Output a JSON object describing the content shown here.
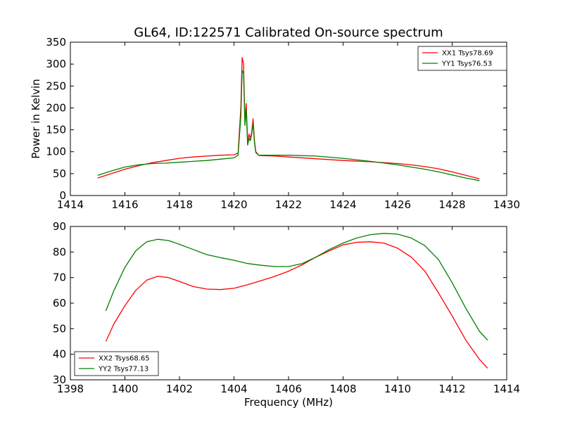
{
  "figure": {
    "title": "GL64, ID:122571 Calibrated On-source spectrum"
  },
  "chart_data": [
    {
      "type": "line",
      "title": "GL64, ID:122571 Calibrated On-source spectrum",
      "xlabel": "",
      "ylabel": "Power in Kelvin",
      "xlim": [
        1414,
        1430
      ],
      "ylim": [
        0,
        350
      ],
      "xticks": [
        1414,
        1416,
        1418,
        1420,
        1422,
        1424,
        1426,
        1428,
        1430
      ],
      "yticks": [
        0,
        50,
        100,
        150,
        200,
        250,
        300,
        350
      ],
      "grid": false,
      "legend_position": "upper right",
      "series": [
        {
          "name": "XX1 Tsys78.69",
          "color": "#ff0000",
          "x": [
            1415.0,
            1415.5,
            1416.0,
            1416.5,
            1417.0,
            1417.5,
            1418.0,
            1418.5,
            1419.0,
            1419.5,
            1420.0,
            1420.15,
            1420.25,
            1420.3,
            1420.35,
            1420.4,
            1420.45,
            1420.5,
            1420.55,
            1420.6,
            1420.65,
            1420.7,
            1420.75,
            1420.8,
            1420.9,
            1421.0,
            1421.5,
            1422.0,
            1423.0,
            1424.0,
            1425.0,
            1426.0,
            1426.5,
            1427.0,
            1427.5,
            1428.0,
            1428.5,
            1429.0
          ],
          "y": [
            40,
            50,
            60,
            68,
            75,
            80,
            85,
            88,
            90,
            92,
            93,
            97,
            200,
            315,
            300,
            170,
            210,
            120,
            140,
            130,
            145,
            175,
            125,
            100,
            92,
            91,
            90,
            88,
            84,
            80,
            77,
            73,
            70,
            66,
            61,
            54,
            46,
            38
          ]
        },
        {
          "name": "YY1 Tsys76.53",
          "color": "#008000",
          "x": [
            1415.0,
            1415.5,
            1416.0,
            1416.5,
            1417.0,
            1417.5,
            1418.0,
            1418.5,
            1419.0,
            1419.5,
            1420.0,
            1420.15,
            1420.25,
            1420.3,
            1420.35,
            1420.4,
            1420.45,
            1420.5,
            1420.55,
            1420.6,
            1420.65,
            1420.7,
            1420.75,
            1420.8,
            1420.9,
            1421.0,
            1421.5,
            1422.0,
            1423.0,
            1424.0,
            1425.0,
            1426.0,
            1426.5,
            1427.0,
            1427.5,
            1428.0,
            1428.5,
            1429.0
          ],
          "y": [
            46,
            56,
            65,
            70,
            73,
            74,
            76,
            78,
            80,
            83,
            86,
            92,
            180,
            285,
            280,
            160,
            195,
            115,
            130,
            125,
            140,
            165,
            120,
            98,
            92,
            92,
            92,
            92,
            90,
            85,
            78,
            70,
            65,
            60,
            54,
            47,
            40,
            34
          ]
        }
      ]
    },
    {
      "type": "line",
      "title": "",
      "xlabel": "Frequency (MHz)",
      "ylabel": "",
      "xlim": [
        1398,
        1414
      ],
      "ylim": [
        30,
        90
      ],
      "xticks": [
        1398,
        1400,
        1402,
        1404,
        1406,
        1408,
        1410,
        1412,
        1414
      ],
      "yticks": [
        30,
        40,
        50,
        60,
        70,
        80,
        90
      ],
      "grid": false,
      "legend_position": "lower left",
      "series": [
        {
          "name": "XX2 Tsys68.65",
          "color": "#ff0000",
          "x": [
            1399.3,
            1399.6,
            1400.0,
            1400.4,
            1400.8,
            1401.2,
            1401.6,
            1402.0,
            1402.5,
            1403.0,
            1403.5,
            1404.0,
            1404.5,
            1405.0,
            1405.5,
            1406.0,
            1406.5,
            1407.0,
            1407.5,
            1408.0,
            1408.5,
            1409.0,
            1409.5,
            1410.0,
            1410.5,
            1411.0,
            1411.5,
            1412.0,
            1412.5,
            1413.0,
            1413.3
          ],
          "y": [
            45,
            52,
            59,
            65,
            69,
            70.5,
            70,
            68.5,
            66.5,
            65.5,
            65.3,
            65.8,
            67.2,
            68.8,
            70.5,
            72.5,
            75,
            78,
            80.5,
            82.8,
            83.8,
            84,
            83.5,
            81.5,
            78,
            72.5,
            64,
            55,
            45.5,
            38,
            34.5
          ]
        },
        {
          "name": "YY2 Tsys77.13",
          "color": "#008000",
          "x": [
            1399.3,
            1399.6,
            1400.0,
            1400.4,
            1400.8,
            1401.2,
            1401.6,
            1402.0,
            1402.5,
            1403.0,
            1403.5,
            1404.0,
            1404.5,
            1405.0,
            1405.5,
            1406.0,
            1406.5,
            1407.0,
            1407.5,
            1408.0,
            1408.5,
            1409.0,
            1409.5,
            1410.0,
            1410.5,
            1411.0,
            1411.5,
            1412.0,
            1412.5,
            1413.0,
            1413.3
          ],
          "y": [
            57,
            65,
            74,
            80.5,
            84,
            85,
            84.5,
            83,
            81,
            79,
            77.8,
            76.8,
            75.5,
            74.8,
            74.3,
            74.3,
            75.5,
            78,
            81,
            83.5,
            85.5,
            86.8,
            87.3,
            87,
            85.5,
            82.5,
            77,
            68,
            58,
            49,
            45.5
          ]
        }
      ]
    }
  ]
}
